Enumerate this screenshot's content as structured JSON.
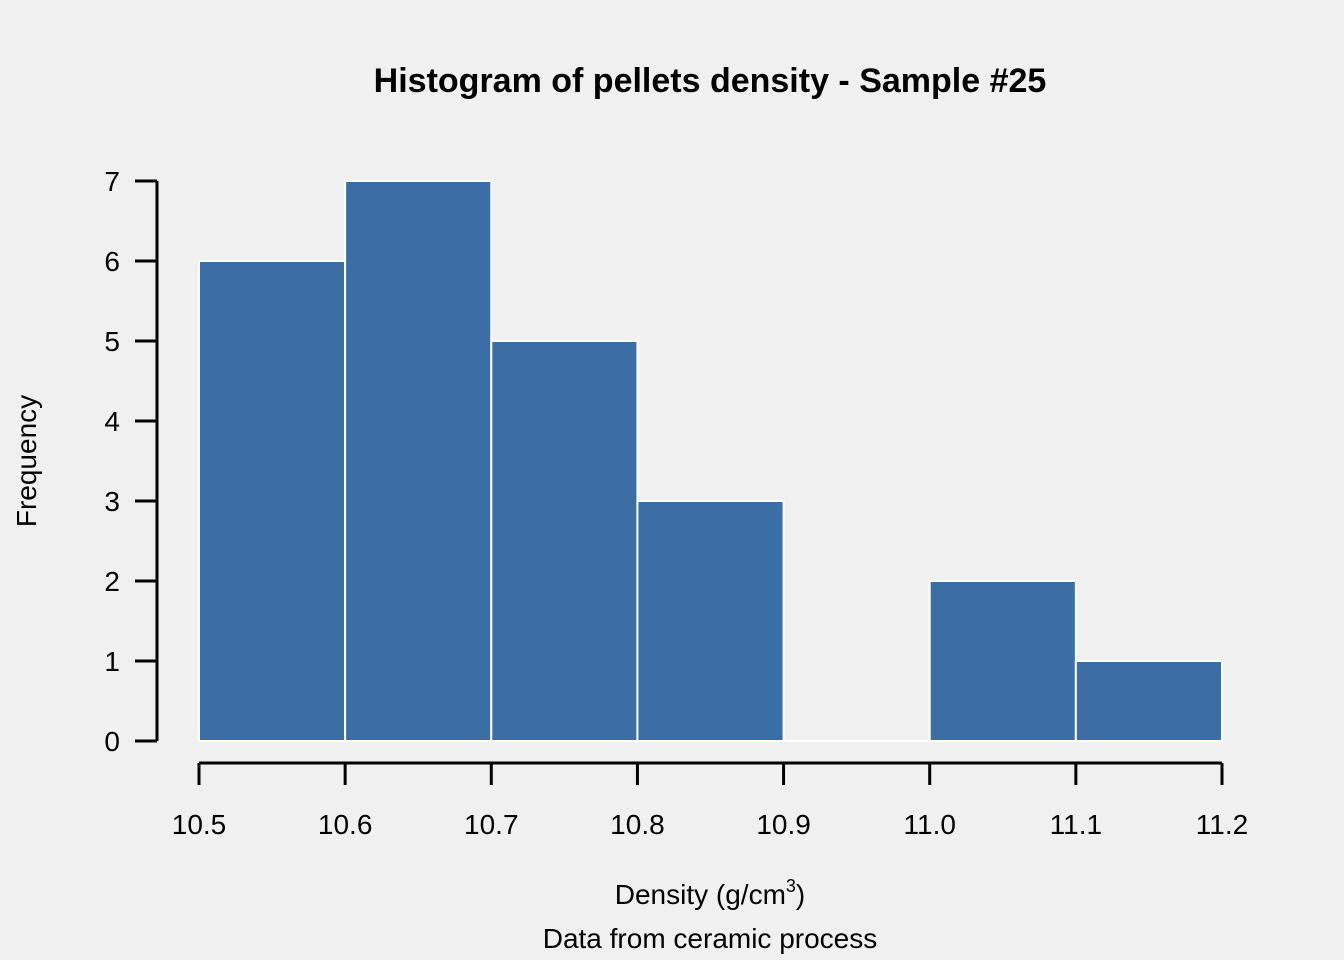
{
  "chart_data": {
    "type": "bar",
    "title": "Histogram of pellets density - Sample #25",
    "xlabel": "Density (g/cm",
    "xlabel_superscript": "3",
    "xlabel_end": ")",
    "subtitle": "Data from ceramic process",
    "ylabel": "Frequency",
    "bins": [
      {
        "x0": 10.5,
        "x1": 10.6,
        "count": 6
      },
      {
        "x0": 10.6,
        "x1": 10.7,
        "count": 7
      },
      {
        "x0": 10.7,
        "x1": 10.8,
        "count": 5
      },
      {
        "x0": 10.8,
        "x1": 10.9,
        "count": 3
      },
      {
        "x0": 10.9,
        "x1": 11.0,
        "count": 0
      },
      {
        "x0": 11.0,
        "x1": 11.1,
        "count": 2
      },
      {
        "x0": 11.1,
        "x1": 11.2,
        "count": 1
      }
    ],
    "xlim": [
      10.5,
      11.2
    ],
    "ylim": [
      0,
      7
    ],
    "x_ticks": [
      "10.5",
      "10.6",
      "10.7",
      "10.8",
      "10.9",
      "11.0",
      "11.1",
      "11.2"
    ],
    "y_ticks": [
      "0",
      "1",
      "2",
      "3",
      "4",
      "5",
      "6",
      "7"
    ],
    "grid": false,
    "colors": {
      "bar": "#3a6ea5",
      "bar_edge": "#ffffff",
      "background": "#f0f0f0",
      "axis": "#000000"
    }
  }
}
